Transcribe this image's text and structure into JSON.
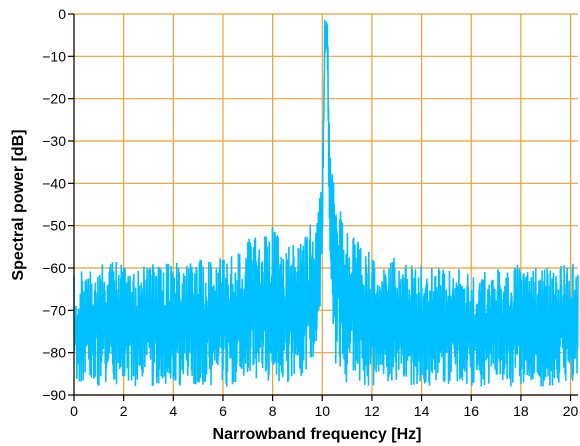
{
  "chart_data": {
    "type": "line",
    "xlabel": "Narrowband frequency [Hz]",
    "ylabel": "Spectral power [dB]",
    "xlim": [
      0,
      20.3
    ],
    "ylim": [
      -90,
      0
    ],
    "x_ticks": [
      0,
      2,
      4,
      6,
      8,
      10,
      12,
      14,
      16,
      18,
      20
    ],
    "y_ticks": [
      0,
      -10,
      -20,
      -30,
      -40,
      -50,
      -60,
      -70,
      -80,
      -90
    ],
    "x_tick_labels": [
      "0",
      "2",
      "4",
      "6",
      "8",
      "10",
      "12",
      "14",
      "16",
      "18",
      "20"
    ],
    "y_tick_labels": [
      "0",
      "−10",
      "−20",
      "−30",
      "−40",
      "−50",
      "−60",
      "−70",
      "−80",
      "−90"
    ],
    "grid": true,
    "colors": {
      "series": "#00bfff",
      "grid": "#f0a030",
      "axis": "#000000"
    },
    "series": [
      {
        "x": [
          0,
          0.5,
          1,
          1.5,
          2,
          2.5,
          3,
          3.5,
          4,
          4.5,
          5,
          5.5,
          6,
          6.5,
          7,
          7.5,
          8,
          8.5,
          9,
          9.5,
          9.8,
          10,
          10.1,
          10.2,
          10.3,
          10.5,
          10.8,
          11,
          11.5,
          12,
          12.5,
          13,
          13.5,
          14,
          14.5,
          15,
          15.5,
          16,
          16.5,
          17,
          17.5,
          18,
          18.5,
          19,
          19.5,
          20,
          20.3
        ],
        "upper": [
          -62,
          -60,
          -59,
          -58,
          -59,
          -60,
          -59,
          -59,
          -58,
          -59,
          -58,
          -58,
          -57,
          -57,
          -53,
          -52,
          -50,
          -54,
          -53,
          -49,
          -44,
          -40,
          -1,
          -1,
          -25,
          -42,
          -46,
          -50,
          -54,
          -56,
          -56,
          -58,
          -58,
          -59,
          -59,
          -60,
          -60,
          -61,
          -61,
          -60,
          -60,
          -59,
          -59,
          -60,
          -59,
          -59,
          -58
        ],
        "lower": [
          -88,
          -88,
          -88,
          -88,
          -88,
          -88,
          -88,
          -88,
          -88,
          -88,
          -88,
          -88,
          -88,
          -88,
          -86,
          -87,
          -87,
          -87,
          -87,
          -84,
          -82,
          -60,
          -10,
          -10,
          -62,
          -82,
          -86,
          -88,
          -88,
          -88,
          -88,
          -88,
          -88,
          -88,
          -88,
          -88,
          -88,
          -88,
          -88,
          -88,
          -88,
          -88,
          -88,
          -88,
          -88,
          -88,
          -88
        ]
      }
    ]
  }
}
